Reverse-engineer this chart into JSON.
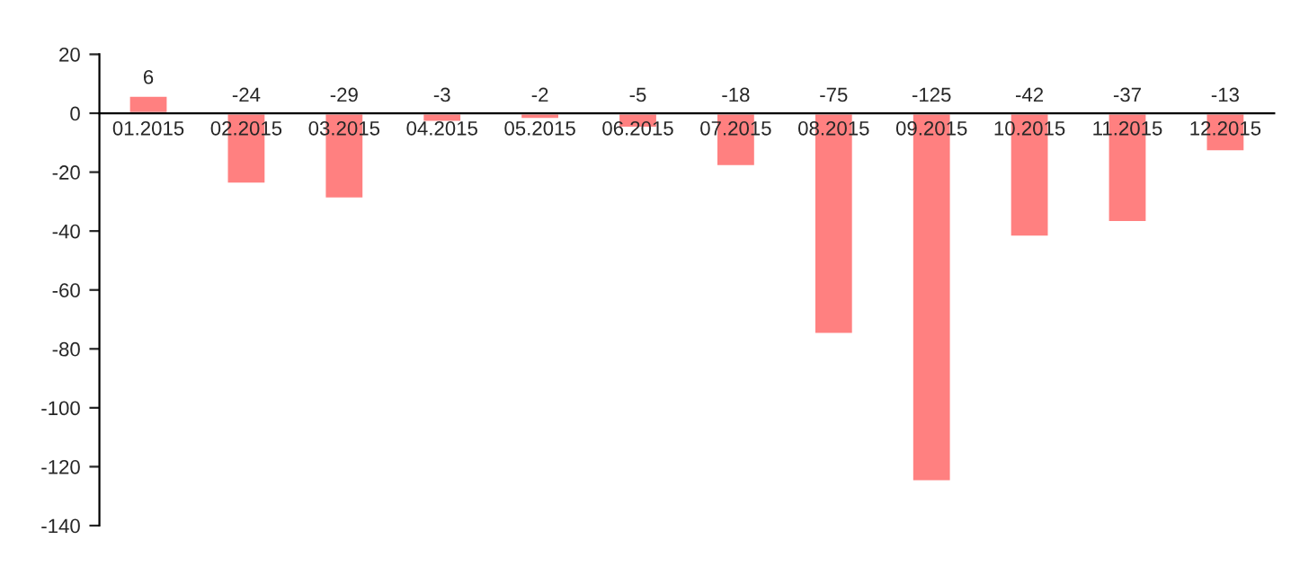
{
  "chart_data": {
    "type": "bar",
    "categories": [
      "01.2015",
      "02.2015",
      "03.2015",
      "04.2015",
      "05.2015",
      "06.2015",
      "07.2015",
      "08.2015",
      "09.2015",
      "10.2015",
      "11.2015",
      "12.2015"
    ],
    "values": [
      6,
      -24,
      -29,
      -3,
      -2,
      -5,
      -18,
      -75,
      -125,
      -42,
      -37,
      -13
    ],
    "color": "#ff8080",
    "ylim": [
      -140,
      20
    ],
    "yticks": [
      -140,
      -120,
      -100,
      -80,
      -60,
      -40,
      -20,
      0,
      20
    ],
    "data_labels": true,
    "grid": false,
    "legend": false
  }
}
